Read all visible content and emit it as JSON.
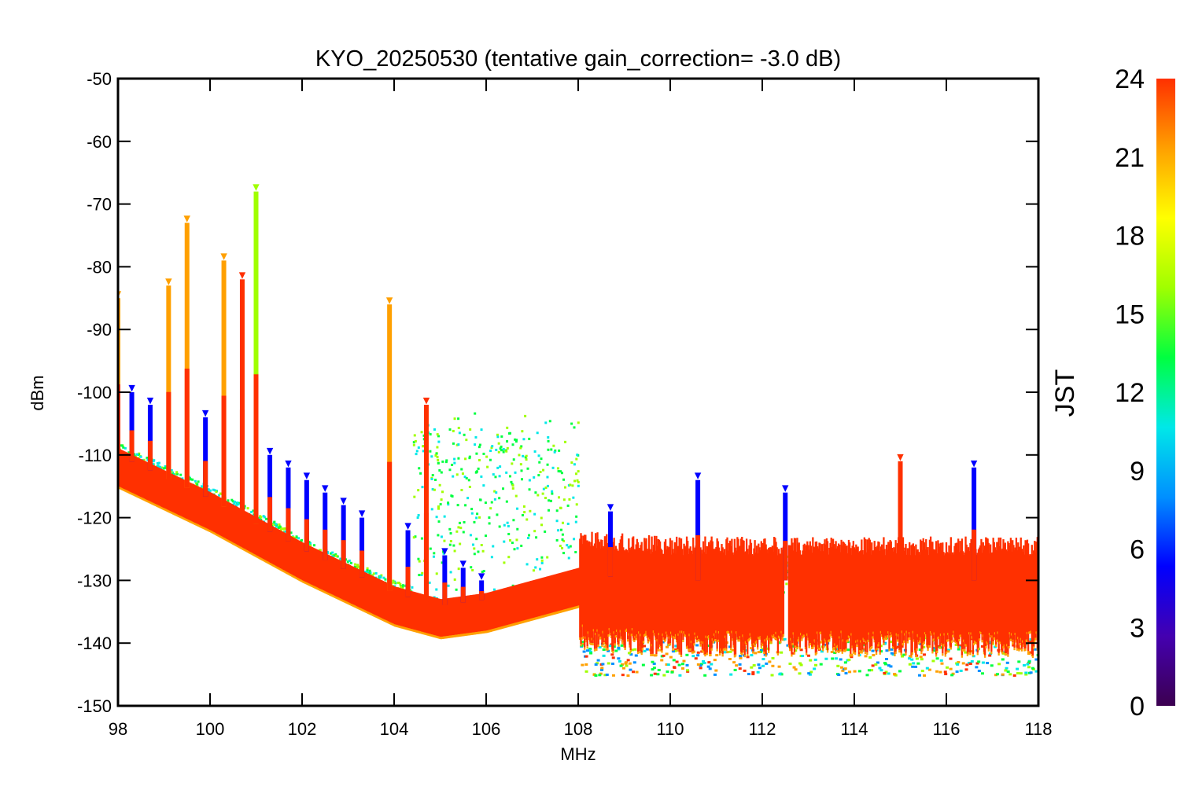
{
  "chart_data": {
    "type": "scatter",
    "title": "KYO_20250530 (tentative gain_correction= -3.0 dB)",
    "xlabel": "MHz",
    "ylabel": "dBm",
    "xlim": [
      98,
      118
    ],
    "ylim": [
      -150,
      -50
    ],
    "x_ticks": [
      98,
      100,
      102,
      104,
      106,
      108,
      110,
      112,
      114,
      116,
      118
    ],
    "y_ticks": [
      -50,
      -60,
      -70,
      -80,
      -90,
      -100,
      -110,
      -120,
      -130,
      -140,
      -150
    ],
    "colorbar": {
      "label": "JST",
      "range": [
        0,
        24
      ],
      "ticks": [
        0,
        3,
        6,
        9,
        12,
        15,
        18,
        21,
        24
      ],
      "colormap": [
        "#3c0050",
        "#4400b0",
        "#0000ff",
        "#0090ff",
        "#00e8e8",
        "#00ff40",
        "#a0ff00",
        "#ffff00",
        "#ffa000",
        "#ff3000"
      ]
    },
    "noise_floor": [
      {
        "x": 98,
        "y": -112
      },
      {
        "x": 100,
        "y": -119
      },
      {
        "x": 102,
        "y": -127
      },
      {
        "x": 104,
        "y": -134
      },
      {
        "x": 105,
        "y": -136
      },
      {
        "x": 106,
        "y": -135
      },
      {
        "x": 107,
        "y": -133
      },
      {
        "x": 108,
        "y": -131
      },
      {
        "x": 110,
        "y": -132
      },
      {
        "x": 112,
        "y": -132
      },
      {
        "x": 114,
        "y": -132
      },
      {
        "x": 116,
        "y": -132
      },
      {
        "x": 118,
        "y": -132
      }
    ],
    "peaks": [
      {
        "freq": 98.0,
        "max_dbm": -85,
        "color": "#ffa000"
      },
      {
        "freq": 98.3,
        "max_dbm": -100,
        "color": "#0000ff"
      },
      {
        "freq": 98.7,
        "max_dbm": -102,
        "color": "#0000ff"
      },
      {
        "freq": 99.1,
        "max_dbm": -83,
        "color": "#ffa000"
      },
      {
        "freq": 99.5,
        "max_dbm": -73,
        "color": "#ffa000"
      },
      {
        "freq": 99.9,
        "max_dbm": -104,
        "color": "#0000ff"
      },
      {
        "freq": 100.3,
        "max_dbm": -79,
        "color": "#ffa000"
      },
      {
        "freq": 100.7,
        "max_dbm": -82,
        "color": "#ff3000"
      },
      {
        "freq": 101.0,
        "max_dbm": -68,
        "color": "#a0ff00"
      },
      {
        "freq": 101.3,
        "max_dbm": -110,
        "color": "#0000ff"
      },
      {
        "freq": 101.7,
        "max_dbm": -112,
        "color": "#0000ff"
      },
      {
        "freq": 102.1,
        "max_dbm": -114,
        "color": "#0000ff"
      },
      {
        "freq": 102.5,
        "max_dbm": -116,
        "color": "#0000ff"
      },
      {
        "freq": 102.9,
        "max_dbm": -118,
        "color": "#0000ff"
      },
      {
        "freq": 103.3,
        "max_dbm": -120,
        "color": "#0000ff"
      },
      {
        "freq": 103.9,
        "max_dbm": -86,
        "color": "#ffa000"
      },
      {
        "freq": 104.3,
        "max_dbm": -122,
        "color": "#0000ff"
      },
      {
        "freq": 104.7,
        "max_dbm": -102,
        "color": "#ff3000"
      },
      {
        "freq": 105.1,
        "max_dbm": -126,
        "color": "#0000ff"
      },
      {
        "freq": 105.5,
        "max_dbm": -128,
        "color": "#0000ff"
      },
      {
        "freq": 105.9,
        "max_dbm": -130,
        "color": "#0000ff"
      },
      {
        "freq": 108.7,
        "max_dbm": -119,
        "color": "#0000ff"
      },
      {
        "freq": 110.6,
        "max_dbm": -114,
        "color": "#0000ff"
      },
      {
        "freq": 112.5,
        "max_dbm": -116,
        "color": "#0000ff"
      },
      {
        "freq": 115.0,
        "max_dbm": -111,
        "color": "#ff3000"
      },
      {
        "freq": 116.6,
        "max_dbm": -112,
        "color": "#0000ff"
      }
    ]
  }
}
